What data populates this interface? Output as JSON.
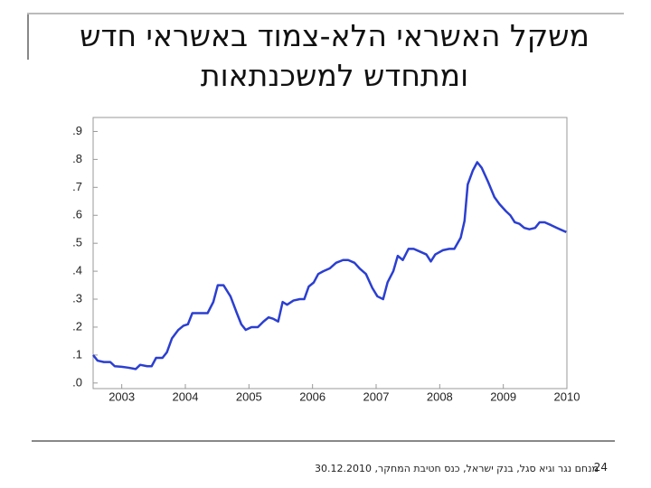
{
  "slide": {
    "title": "משקל האשראי הלא-צמוד באשראי חדש ומתחדש למשכנתאות",
    "footer": "מנחם נגר וגיא סגל, בנק ישראל, כנס חטיבת המחקר, 30.12.2010",
    "page_number": 24
  },
  "chart_data": {
    "type": "line",
    "x": [
      2002.55,
      2002.62,
      2002.72,
      2002.82,
      2002.89,
      2003.0,
      2003.1,
      2003.22,
      2003.29,
      2003.4,
      2003.47,
      2003.54,
      2003.64,
      2003.71,
      2003.79,
      2003.89,
      2003.97,
      2004.04,
      2004.11,
      2004.21,
      2004.35,
      2004.44,
      2004.51,
      2004.6,
      2004.71,
      2004.81,
      2004.88,
      2004.95,
      2005.04,
      2005.14,
      2005.23,
      2005.31,
      2005.38,
      2005.46,
      2005.53,
      2005.6,
      2005.7,
      2005.8,
      2005.87,
      2005.94,
      2006.02,
      2006.09,
      2006.17,
      2006.27,
      2006.37,
      2006.48,
      2006.56,
      2006.66,
      2006.74,
      2006.84,
      2006.94,
      2007.02,
      2007.11,
      2007.18,
      2007.27,
      2007.34,
      2007.42,
      2007.51,
      2007.59,
      2007.69,
      2007.79,
      2007.86,
      2007.93,
      2008.05,
      2008.15,
      2008.23,
      2008.33,
      2008.39,
      2008.44,
      2008.52,
      2008.59,
      2008.66,
      2008.76,
      2008.86,
      2008.94,
      2009.04,
      2009.11,
      2009.18,
      2009.25,
      2009.33,
      2009.41,
      2009.5,
      2009.57,
      2009.65,
      2009.75,
      2009.84,
      2009.99
    ],
    "series": [
      {
        "color": "#2b3fd1",
        "values": [
          0.1,
          0.08,
          0.075,
          0.075,
          0.06,
          0.058,
          0.055,
          0.05,
          0.065,
          0.06,
          0.06,
          0.09,
          0.09,
          0.11,
          0.16,
          0.19,
          0.205,
          0.21,
          0.25,
          0.25,
          0.25,
          0.29,
          0.35,
          0.35,
          0.31,
          0.25,
          0.21,
          0.19,
          0.2,
          0.2,
          0.22,
          0.235,
          0.23,
          0.22,
          0.29,
          0.28,
          0.295,
          0.3,
          0.3,
          0.345,
          0.36,
          0.39,
          0.4,
          0.41,
          0.43,
          0.44,
          0.44,
          0.43,
          0.41,
          0.39,
          0.34,
          0.31,
          0.3,
          0.36,
          0.4,
          0.455,
          0.44,
          0.48,
          0.48,
          0.47,
          0.46,
          0.435,
          0.46,
          0.475,
          0.48,
          0.48,
          0.52,
          0.58,
          0.71,
          0.76,
          0.79,
          0.77,
          0.72,
          0.665,
          0.64,
          0.615,
          0.6,
          0.575,
          0.57,
          0.555,
          0.55,
          0.555,
          0.575,
          0.575,
          0.565,
          0.555,
          0.54
        ]
      }
    ],
    "xlim": [
      2002.55,
      2010.0
    ],
    "xticks": [
      2003,
      2004,
      2005,
      2006,
      2007,
      2008,
      2009,
      2010
    ],
    "ylim": [
      -0.02,
      0.95
    ],
    "yticks": [
      {
        "value": 0,
        "label": ".0"
      },
      {
        "value": 0.1,
        "label": ".1"
      },
      {
        "value": 0.2,
        "label": ".2"
      },
      {
        "value": 0.3,
        "label": ".3"
      },
      {
        "value": 0.4,
        "label": ".4"
      },
      {
        "value": 0.5,
        "label": ".5"
      },
      {
        "value": 0.6,
        "label": ".6"
      },
      {
        "value": 0.7,
        "label": ".7"
      },
      {
        "value": 0.8,
        "label": ".8"
      },
      {
        "value": 0.9,
        "label": ".9"
      }
    ]
  }
}
